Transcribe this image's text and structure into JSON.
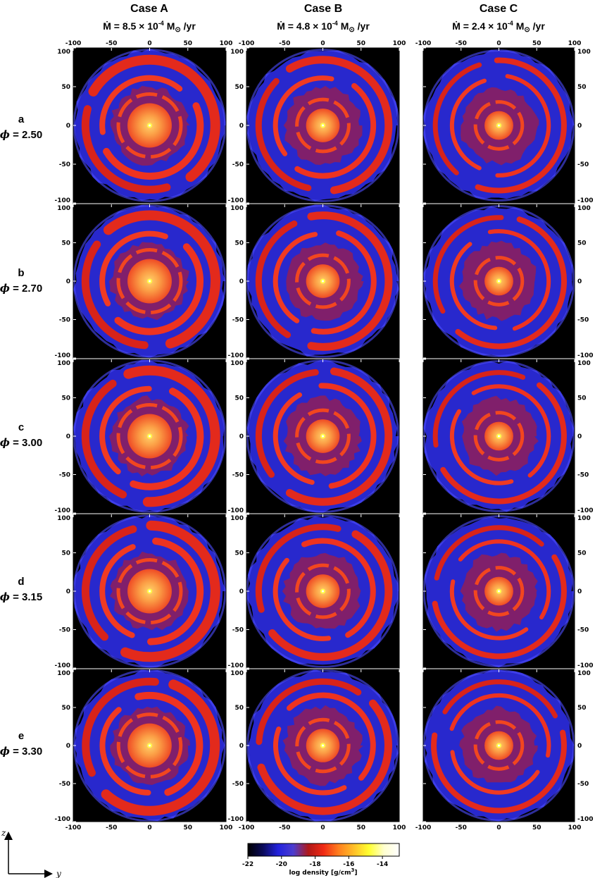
{
  "columns": [
    {
      "title": "Case A",
      "rate_prefix": "Ṁ = 8.5 × 10",
      "rate_exp": "-4",
      "rate_suffix": " M",
      "sun_sym": "⊙",
      "unit": " /yr"
    },
    {
      "title": "Case B",
      "rate_prefix": "Ṁ = 4.8 × 10",
      "rate_exp": "-4",
      "rate_suffix": " M",
      "sun_sym": "⊙",
      "unit": " /yr"
    },
    {
      "title": "Case C",
      "rate_prefix": "Ṁ = 2.4 × 10",
      "rate_exp": "-4",
      "rate_suffix": " M",
      "sun_sym": "⊙",
      "unit": " /yr"
    }
  ],
  "rows": [
    {
      "letter": "a",
      "phi_symbol": "ϕ",
      "phi_text": " = 2.50"
    },
    {
      "letter": "b",
      "phi_symbol": "ϕ",
      "phi_text": " = 2.70"
    },
    {
      "letter": "c",
      "phi_symbol": "ϕ",
      "phi_text": " = 3.00"
    },
    {
      "letter": "d",
      "phi_symbol": "ϕ",
      "phi_text": " = 3.15"
    },
    {
      "letter": "e",
      "phi_symbol": "ϕ",
      "phi_text": " = 3.30"
    }
  ],
  "axis_ticks": [
    "-100",
    "-50",
    "0",
    "50",
    "100"
  ],
  "axis_labels": {
    "vertical": "z",
    "horizontal": "y"
  },
  "colorbar": {
    "tick_labels": [
      "-22",
      "-20",
      "-18",
      "-16",
      "-14"
    ],
    "range": [
      -22,
      -13
    ],
    "label": "log density  [g/cm",
    "label_exp": "3",
    "label_end": "]",
    "colors": [
      "#000000",
      "#0a0a5a",
      "#2222dd",
      "#4b3ccf",
      "#b01818",
      "#f02a14",
      "#ff7f1e",
      "#ffbf28",
      "#ffff30",
      "#ffffd0",
      "#ffffff"
    ]
  },
  "colors": {
    "background": "#000000",
    "shell_red": "#e8251a",
    "shell_blue": "#2a2ee6",
    "core": "#f9a34a",
    "star": "#ffff4a"
  }
}
